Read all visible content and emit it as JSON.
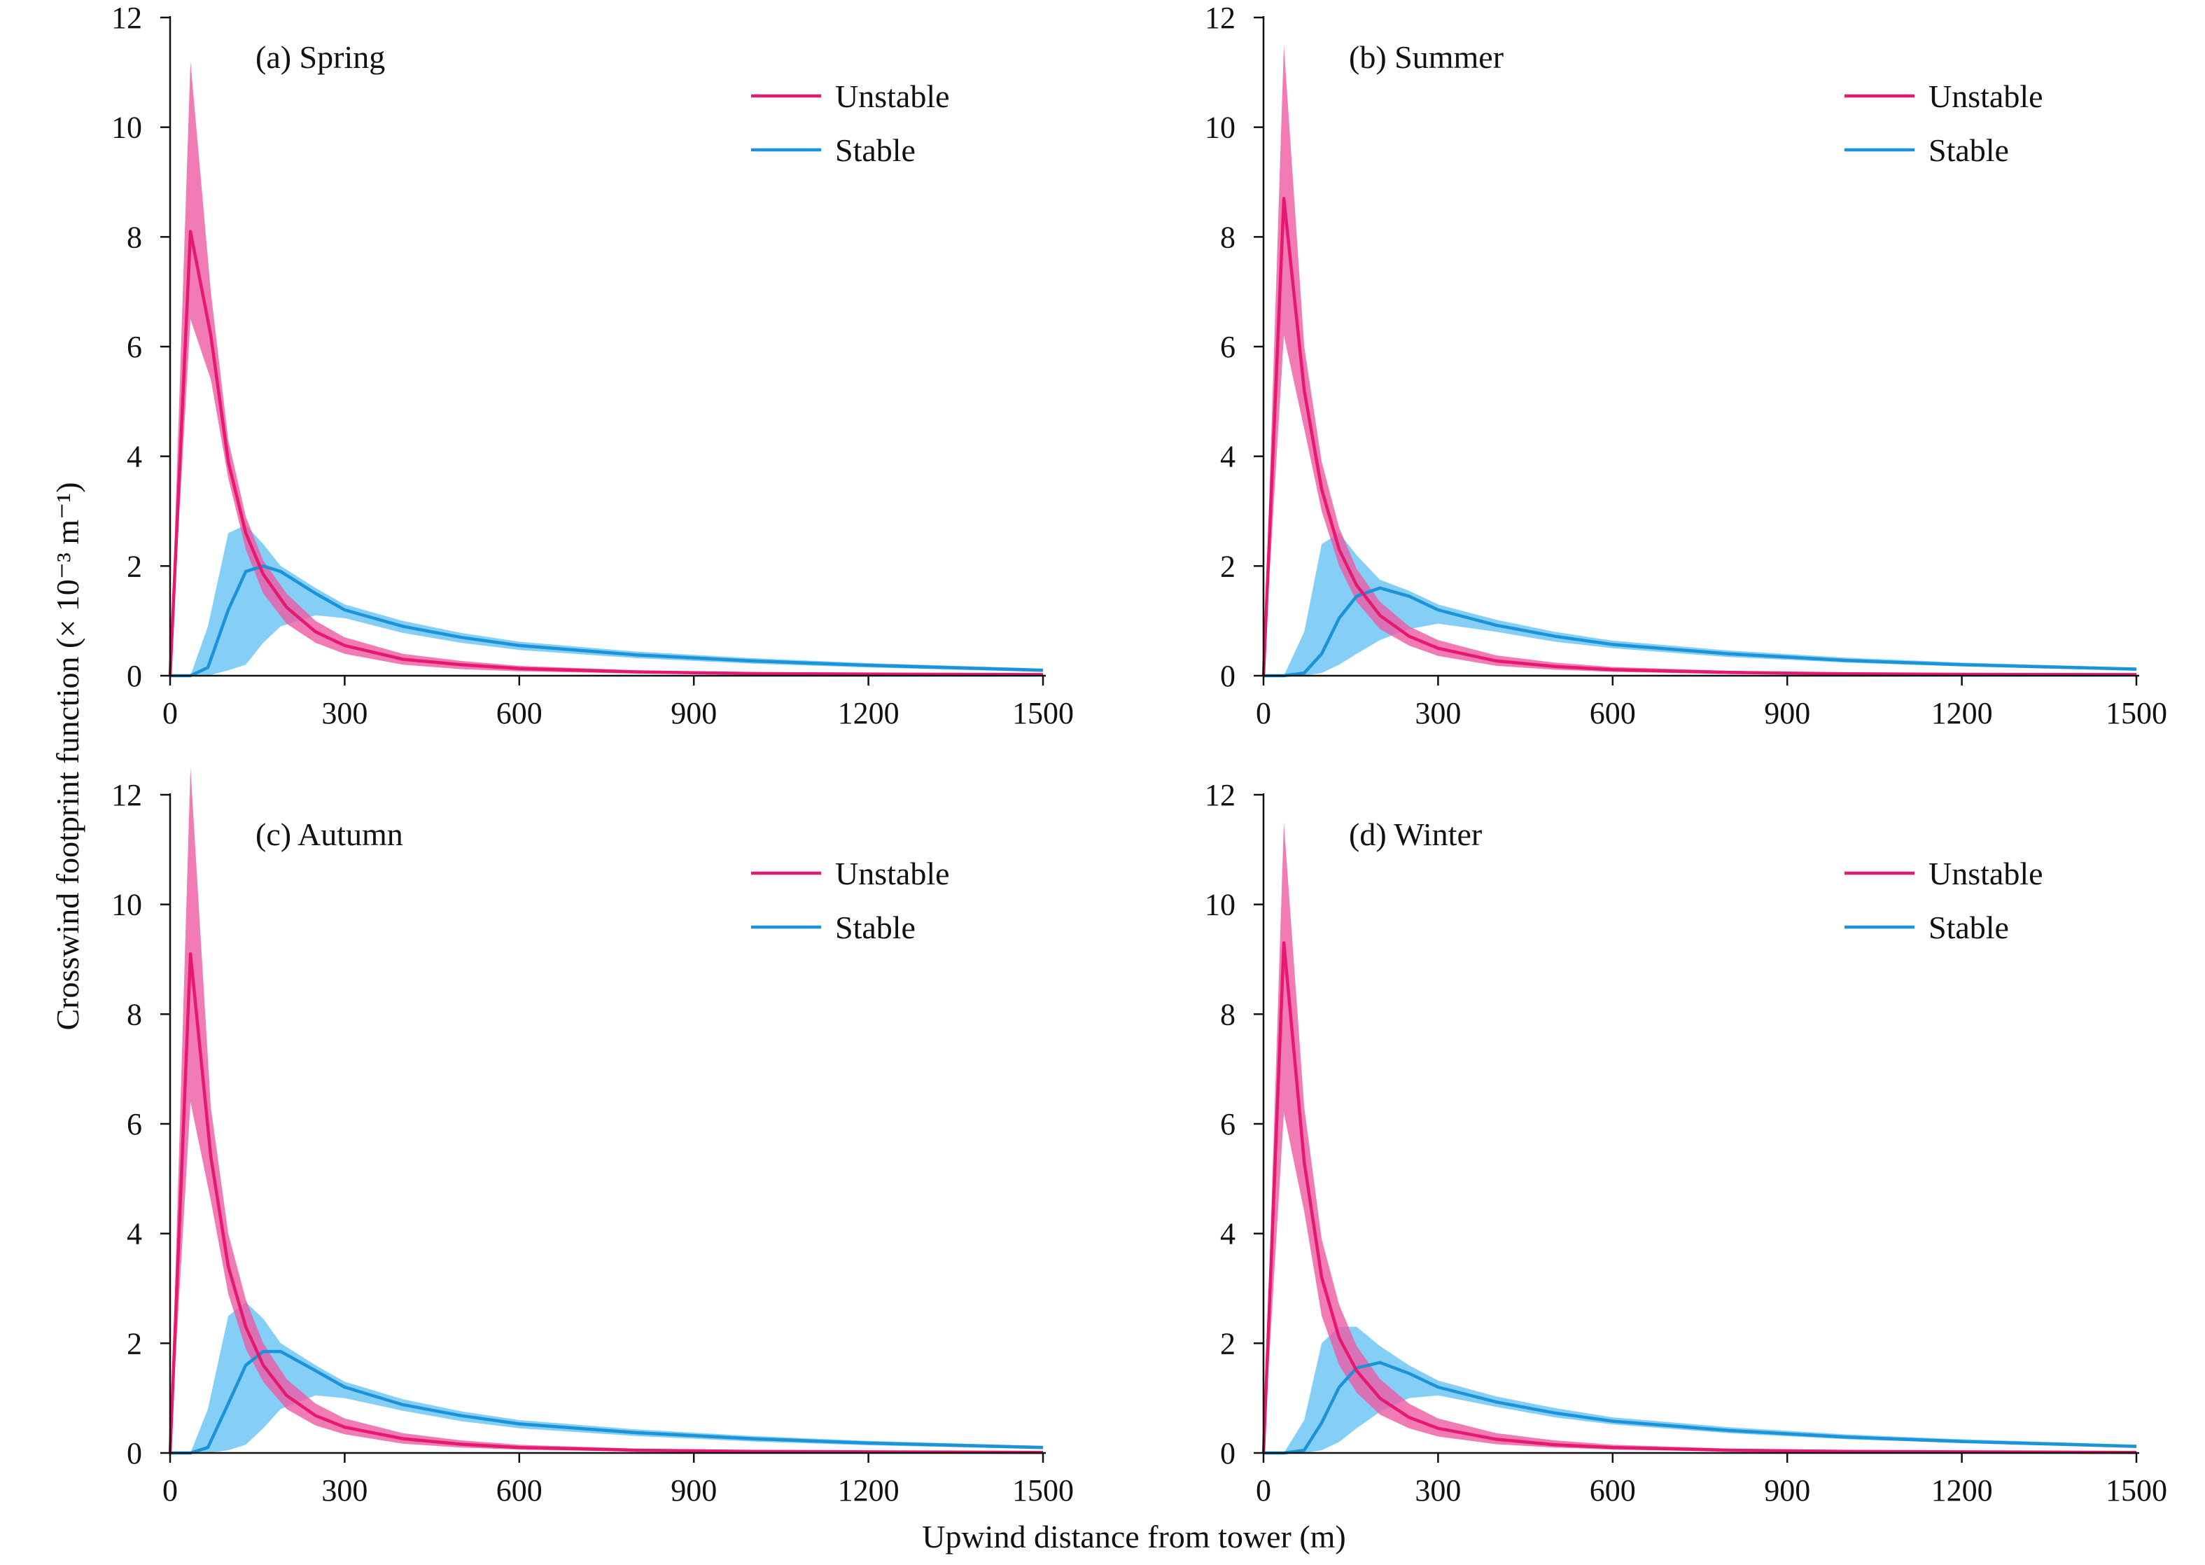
{
  "figure": {
    "xlabel": "Upwind distance from tower (m)",
    "ylabel": "Crosswind footprint function (× 10⁻³ m⁻¹)"
  },
  "colors": {
    "unstable_line": "#e6186f",
    "unstable_band": "#ee5aa2",
    "stable_line": "#1b93d8",
    "stable_band": "#66c3f5",
    "axis": "#111111"
  },
  "chart_data": [
    {
      "type": "line",
      "title": "(a) Spring",
      "xlim": [
        0,
        1500
      ],
      "ylim": [
        0,
        12
      ],
      "xticks": [
        0,
        300,
        600,
        900,
        1200,
        1500
      ],
      "yticks": [
        0,
        2,
        4,
        6,
        8,
        10,
        12
      ],
      "legend": {
        "position": "top-right",
        "entries": [
          "Unstable",
          "Stable"
        ]
      },
      "series": [
        {
          "name": "Unstable",
          "x": [
            0,
            35,
            70,
            100,
            130,
            160,
            200,
            250,
            300,
            400,
            500,
            600,
            800,
            1000,
            1200,
            1500
          ],
          "mean": [
            0,
            8.1,
            6.2,
            3.9,
            2.6,
            1.85,
            1.25,
            0.8,
            0.55,
            0.3,
            0.2,
            0.13,
            0.07,
            0.04,
            0.03,
            0.02
          ],
          "lower": [
            0,
            6.5,
            5.4,
            3.6,
            2.3,
            1.5,
            0.95,
            0.6,
            0.4,
            0.2,
            0.12,
            0.08,
            0.04,
            0.02,
            0.01,
            0.0
          ],
          "upper": [
            0,
            11.2,
            7.0,
            4.3,
            2.9,
            2.1,
            1.5,
            1.0,
            0.7,
            0.4,
            0.27,
            0.18,
            0.1,
            0.06,
            0.04,
            0.03
          ]
        },
        {
          "name": "Stable",
          "x": [
            0,
            35,
            65,
            100,
            130,
            160,
            190,
            250,
            300,
            400,
            500,
            600,
            800,
            1000,
            1200,
            1500
          ],
          "mean": [
            0,
            0,
            0.15,
            1.2,
            1.9,
            2.0,
            1.9,
            1.5,
            1.2,
            0.9,
            0.7,
            0.55,
            0.38,
            0.27,
            0.19,
            0.1
          ],
          "lower": [
            0,
            0,
            0.0,
            0.1,
            0.2,
            0.6,
            0.9,
            1.1,
            1.05,
            0.78,
            0.6,
            0.47,
            0.32,
            0.22,
            0.15,
            0.07
          ],
          "upper": [
            0,
            0,
            0.9,
            2.6,
            2.75,
            2.4,
            2.0,
            1.6,
            1.3,
            1.0,
            0.78,
            0.62,
            0.44,
            0.32,
            0.23,
            0.13
          ]
        }
      ]
    },
    {
      "type": "line",
      "title": "(b) Summer",
      "xlim": [
        0,
        1500
      ],
      "ylim": [
        0,
        12
      ],
      "xticks": [
        0,
        300,
        600,
        900,
        1200,
        1500
      ],
      "yticks": [
        0,
        2,
        4,
        6,
        8,
        10,
        12
      ],
      "legend": {
        "position": "top-right",
        "entries": [
          "Unstable",
          "Stable"
        ]
      },
      "series": [
        {
          "name": "Unstable",
          "x": [
            0,
            35,
            70,
            100,
            130,
            160,
            200,
            250,
            300,
            400,
            500,
            600,
            800,
            1000,
            1200,
            1500
          ],
          "mean": [
            0,
            8.7,
            5.2,
            3.4,
            2.3,
            1.65,
            1.1,
            0.72,
            0.5,
            0.27,
            0.17,
            0.11,
            0.06,
            0.035,
            0.025,
            0.02
          ],
          "lower": [
            0,
            6.2,
            4.5,
            3.0,
            2.0,
            1.35,
            0.85,
            0.55,
            0.36,
            0.18,
            0.11,
            0.07,
            0.03,
            0.02,
            0.01,
            0.0
          ],
          "upper": [
            0,
            11.5,
            6.0,
            3.9,
            2.7,
            1.95,
            1.35,
            0.9,
            0.65,
            0.37,
            0.24,
            0.16,
            0.09,
            0.05,
            0.04,
            0.03
          ]
        },
        {
          "name": "Stable",
          "x": [
            0,
            35,
            70,
            100,
            130,
            160,
            200,
            250,
            300,
            400,
            500,
            600,
            800,
            1000,
            1200,
            1500
          ],
          "mean": [
            0,
            0,
            0.05,
            0.4,
            1.05,
            1.45,
            1.6,
            1.45,
            1.2,
            0.92,
            0.72,
            0.57,
            0.4,
            0.28,
            0.2,
            0.12
          ],
          "lower": [
            0,
            0,
            0.0,
            0.05,
            0.2,
            0.4,
            0.65,
            0.85,
            0.95,
            0.8,
            0.62,
            0.5,
            0.34,
            0.24,
            0.17,
            0.09
          ],
          "upper": [
            0,
            0,
            0.8,
            2.4,
            2.6,
            2.2,
            1.75,
            1.55,
            1.3,
            1.02,
            0.8,
            0.64,
            0.46,
            0.33,
            0.24,
            0.15
          ]
        }
      ]
    },
    {
      "type": "line",
      "title": "(c) Autumn",
      "xlim": [
        0,
        1500
      ],
      "ylim": [
        0,
        12
      ],
      "xticks": [
        0,
        300,
        600,
        900,
        1200,
        1500
      ],
      "yticks": [
        0,
        2,
        4,
        6,
        8,
        10,
        12
      ],
      "legend": {
        "position": "top-right",
        "entries": [
          "Unstable",
          "Stable"
        ]
      },
      "series": [
        {
          "name": "Unstable",
          "x": [
            0,
            35,
            70,
            100,
            130,
            160,
            200,
            250,
            300,
            400,
            500,
            600,
            800,
            1000,
            1200,
            1500
          ],
          "mean": [
            0,
            9.1,
            5.4,
            3.4,
            2.3,
            1.6,
            1.05,
            0.68,
            0.47,
            0.26,
            0.16,
            0.1,
            0.05,
            0.03,
            0.02,
            0.01
          ],
          "lower": [
            0,
            6.4,
            4.6,
            2.9,
            1.9,
            1.3,
            0.8,
            0.5,
            0.34,
            0.17,
            0.1,
            0.06,
            0.03,
            0.015,
            0.01,
            0.0
          ],
          "upper": [
            0,
            12.5,
            6.3,
            4.0,
            2.8,
            2.0,
            1.35,
            0.9,
            0.63,
            0.36,
            0.23,
            0.15,
            0.08,
            0.05,
            0.03,
            0.02
          ]
        },
        {
          "name": "Stable",
          "x": [
            0,
            35,
            65,
            100,
            130,
            160,
            190,
            250,
            300,
            400,
            500,
            600,
            800,
            1000,
            1200,
            1500
          ],
          "mean": [
            0,
            0,
            0.1,
            0.9,
            1.6,
            1.85,
            1.85,
            1.5,
            1.2,
            0.88,
            0.68,
            0.53,
            0.37,
            0.26,
            0.18,
            0.1
          ],
          "lower": [
            0,
            0,
            0.0,
            0.05,
            0.15,
            0.45,
            0.8,
            1.05,
            1.0,
            0.77,
            0.58,
            0.45,
            0.31,
            0.21,
            0.14,
            0.07
          ],
          "upper": [
            0,
            0,
            0.8,
            2.5,
            2.75,
            2.45,
            2.0,
            1.6,
            1.3,
            0.98,
            0.76,
            0.6,
            0.43,
            0.31,
            0.22,
            0.13
          ]
        }
      ]
    },
    {
      "type": "line",
      "title": "(d) Winter",
      "xlim": [
        0,
        1500
      ],
      "ylim": [
        0,
        12
      ],
      "xticks": [
        0,
        300,
        600,
        900,
        1200,
        1500
      ],
      "yticks": [
        0,
        2,
        4,
        6,
        8,
        10,
        12
      ],
      "legend": {
        "position": "top-right",
        "entries": [
          "Unstable",
          "Stable"
        ]
      },
      "series": [
        {
          "name": "Unstable",
          "x": [
            0,
            35,
            70,
            100,
            130,
            160,
            200,
            250,
            300,
            400,
            500,
            600,
            800,
            1000,
            1200,
            1500
          ],
          "mean": [
            0,
            9.3,
            5.3,
            3.2,
            2.1,
            1.5,
            1.0,
            0.65,
            0.45,
            0.25,
            0.15,
            0.1,
            0.05,
            0.03,
            0.02,
            0.01
          ],
          "lower": [
            0,
            6.2,
            4.4,
            2.5,
            1.6,
            1.1,
            0.7,
            0.45,
            0.3,
            0.16,
            0.1,
            0.06,
            0.03,
            0.015,
            0.01,
            0.0
          ],
          "upper": [
            0,
            11.5,
            6.3,
            3.9,
            2.7,
            1.95,
            1.35,
            0.9,
            0.63,
            0.36,
            0.23,
            0.15,
            0.08,
            0.05,
            0.03,
            0.02
          ]
        },
        {
          "name": "Stable",
          "x": [
            0,
            35,
            70,
            100,
            130,
            160,
            200,
            250,
            300,
            400,
            500,
            600,
            800,
            1000,
            1200,
            1500
          ],
          "mean": [
            0,
            0,
            0.05,
            0.55,
            1.2,
            1.55,
            1.65,
            1.45,
            1.2,
            0.93,
            0.73,
            0.58,
            0.41,
            0.29,
            0.21,
            0.12
          ],
          "lower": [
            0,
            0,
            0.0,
            0.05,
            0.2,
            0.45,
            0.75,
            1.0,
            1.05,
            0.84,
            0.65,
            0.52,
            0.36,
            0.25,
            0.18,
            0.09
          ],
          "upper": [
            0,
            0,
            0.6,
            2.0,
            2.3,
            2.3,
            1.95,
            1.6,
            1.32,
            1.03,
            0.82,
            0.65,
            0.47,
            0.34,
            0.25,
            0.15
          ]
        }
      ]
    }
  ]
}
